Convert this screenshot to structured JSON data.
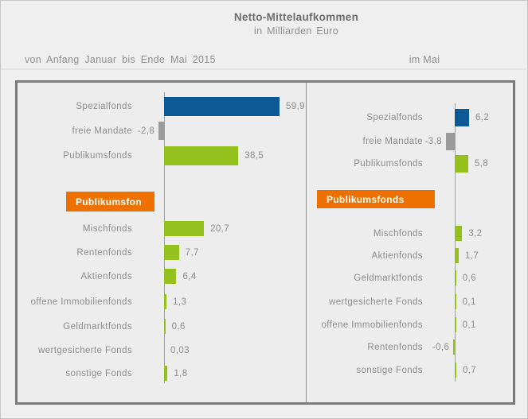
{
  "header": {
    "title": "Netto-Mittelaufkommen",
    "subtitle": "in Milliarden Euro",
    "left_period_label": "von Anfang Januar bis Ende Mai 2015",
    "right_period_label": "im Mai"
  },
  "palette": {
    "blue": "#0d5996",
    "green": "#95c11f",
    "gray": "#9b9b9b",
    "orange": "#ee7100",
    "label_text": "#8d8d8d"
  },
  "chart_data": [
    {
      "type": "bar",
      "orientation": "horizontal",
      "title": "von Anfang Januar bis Ende Mai 2015",
      "unit": "Milliarden Euro",
      "zero_axis_line": true,
      "top_rows": [
        {
          "label": "Spezialfonds",
          "value": 59.9,
          "value_label": "59,9",
          "color": "blue"
        },
        {
          "label": "freie Mandate",
          "value": -2.8,
          "value_label": "-2,8",
          "color": "gray"
        },
        {
          "label": "Publikumsfonds",
          "value": 38.5,
          "value_label": "38,5",
          "color": "green"
        }
      ],
      "callout": "Publikumsfon",
      "detail_rows": [
        {
          "label": "Mischfonds",
          "value": 20.7,
          "value_label": "20,7",
          "color": "green"
        },
        {
          "label": "Rentenfonds",
          "value": 7.7,
          "value_label": "7,7",
          "color": "green"
        },
        {
          "label": "Aktienfonds",
          "value": 6.4,
          "value_label": "6,4",
          "color": "green"
        },
        {
          "label": "offene Immobilienfonds",
          "value": 1.3,
          "value_label": "1,3",
          "color": "green"
        },
        {
          "label": "Geldmarktfonds",
          "value": 0.6,
          "value_label": "0,6",
          "color": "green"
        },
        {
          "label": "wertgesicherte Fonds",
          "value": 0.03,
          "value_label": "0,03",
          "color": "green"
        },
        {
          "label": "sonstige Fonds",
          "value": 1.8,
          "value_label": "1,8",
          "color": "green"
        }
      ]
    },
    {
      "type": "bar",
      "orientation": "horizontal",
      "title": "im Mai",
      "unit": "Milliarden Euro",
      "zero_axis_line": true,
      "top_rows": [
        {
          "label": "Spezialfonds",
          "value": 6.2,
          "value_label": "6,2",
          "color": "blue"
        },
        {
          "label": "freie Mandate",
          "value": -3.8,
          "value_label": "-3,8",
          "color": "gray"
        },
        {
          "label": "Publikumsfonds",
          "value": 5.8,
          "value_label": "5,8",
          "color": "green"
        }
      ],
      "callout": "Publikumsfonds",
      "detail_rows": [
        {
          "label": "Mischfonds",
          "value": 3.2,
          "value_label": "3,2",
          "color": "green"
        },
        {
          "label": "Aktienfonds",
          "value": 1.7,
          "value_label": "1,7",
          "color": "green"
        },
        {
          "label": "Geldmarktfonds",
          "value": 0.6,
          "value_label": "0,6",
          "color": "green"
        },
        {
          "label": "wertgesicherte Fonds",
          "value": 0.1,
          "value_label": "0,1",
          "color": "green"
        },
        {
          "label": "offene Immobilienfonds",
          "value": 0.1,
          "value_label": "0,1",
          "color": "green"
        },
        {
          "label": "Rentenfonds",
          "value": -0.6,
          "value_label": "-0,6",
          "color": "green"
        },
        {
          "label": "sonstige Fonds",
          "value": 0.7,
          "value_label": "0,7",
          "color": "green"
        }
      ]
    }
  ]
}
